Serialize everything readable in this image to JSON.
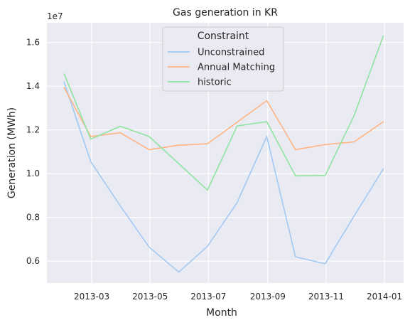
{
  "chart_data": {
    "type": "line",
    "title": "Gas generation in KR",
    "xlabel": "Month",
    "ylabel": "Generation (MWh)",
    "y_offset_label": "1e7",
    "x_tick_labels": [
      "2013-03",
      "2013-05",
      "2013-07",
      "2013-09",
      "2013-11",
      "2014-01"
    ],
    "y_tick_labels": [
      "0.6",
      "0.8",
      "1.0",
      "1.2",
      "1.4",
      "1.6"
    ],
    "x": [
      "2013-01-31",
      "2013-02-28",
      "2013-03-31",
      "2013-04-30",
      "2013-05-31",
      "2013-06-30",
      "2013-07-31",
      "2013-08-31",
      "2013-09-30",
      "2013-10-31",
      "2013-11-30",
      "2013-12-31"
    ],
    "ylim": [
      5000000,
      16900000
    ],
    "grid": true,
    "legend": {
      "title": "Constraint",
      "placement": "top-center"
    },
    "series": [
      {
        "name": "Unconstrained",
        "color": "#a1c9f4",
        "values": [
          14200000,
          10550000,
          8520000,
          6650000,
          5500000,
          6680000,
          8680000,
          11700000,
          6200000,
          5880000,
          8050000,
          10230000
        ]
      },
      {
        "name": "Annual Matching",
        "color": "#ffb482",
        "values": [
          13950000,
          11700000,
          11870000,
          11100000,
          11300000,
          11370000,
          12350000,
          13340000,
          11100000,
          11330000,
          11450000,
          12380000
        ]
      },
      {
        "name": "historic",
        "color": "#8de5a1",
        "values": [
          14580000,
          11580000,
          12170000,
          11700000,
          10460000,
          9250000,
          12180000,
          12380000,
          9900000,
          9920000,
          12630000,
          16320000
        ]
      }
    ]
  }
}
